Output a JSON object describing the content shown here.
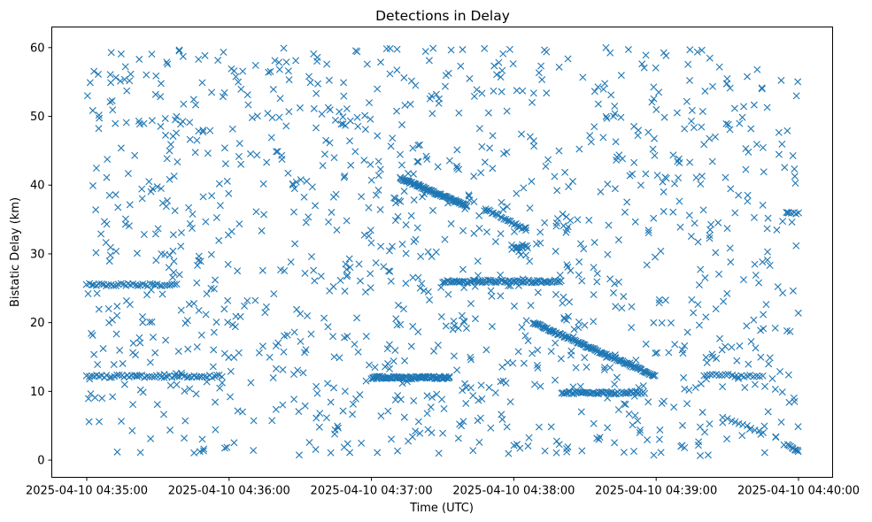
{
  "chart_data": {
    "type": "scatter",
    "title": "Detections in Delay",
    "xlabel": "Time (UTC)",
    "ylabel": "Bistatic Delay (km)",
    "x_start": "2025-04-10 04:35:00",
    "x_end": "2025-04-10 04:40:00",
    "xticks": [
      "2025-04-10 04:35:00",
      "2025-04-10 04:36:00",
      "2025-04-10 04:37:00",
      "2025-04-10 04:38:00",
      "2025-04-10 04:39:00",
      "2025-04-10 04:40:00"
    ],
    "ylim": [
      -2.5,
      63
    ],
    "yticks": [
      0,
      10,
      20,
      30,
      40,
      50,
      60
    ],
    "marker": "x",
    "color": "#1f77b4",
    "grid": false,
    "noise_points": {
      "count": 1200,
      "time_range": [
        "2025-04-10 04:35:00",
        "2025-04-10 04:40:00"
      ],
      "delay_range_km": [
        0.5,
        60
      ]
    },
    "series": [
      {
        "kind": "horizontal",
        "delay_km": 12.2,
        "time_start": "2025-04-10 04:35:00",
        "time_end": "2025-04-10 04:35:57",
        "count": 55
      },
      {
        "kind": "horizontal",
        "delay_km": 25.5,
        "time_start": "2025-04-10 04:35:00",
        "time_end": "2025-04-10 04:35:38",
        "count": 38
      },
      {
        "kind": "horizontal",
        "delay_km": 12.0,
        "time_start": "2025-04-10 04:37:00",
        "time_end": "2025-04-10 04:37:33",
        "count": 90
      },
      {
        "kind": "diagonal",
        "delay_start_km": 41.0,
        "delay_end_km": 37.0,
        "time_start": "2025-04-10 04:37:12",
        "time_end": "2025-04-10 04:37:40",
        "count": 80
      },
      {
        "kind": "diagonal",
        "delay_start_km": 36.5,
        "delay_end_km": 33.5,
        "time_start": "2025-04-10 04:37:48",
        "time_end": "2025-04-10 04:38:05",
        "count": 25
      },
      {
        "kind": "horizontal",
        "delay_km": 26.0,
        "time_start": "2025-04-10 04:37:30",
        "time_end": "2025-04-10 04:38:20",
        "count": 80
      },
      {
        "kind": "diagonal",
        "delay_start_km": 20.0,
        "delay_end_km": 12.3,
        "time_start": "2025-04-10 04:38:08",
        "time_end": "2025-04-10 04:38:59",
        "count": 110
      },
      {
        "kind": "horizontal",
        "delay_km": 9.8,
        "time_start": "2025-04-10 04:38:20",
        "time_end": "2025-04-10 04:38:55",
        "count": 55
      },
      {
        "kind": "horizontal",
        "delay_km": 31.0,
        "time_start": "2025-04-10 04:38:00",
        "time_end": "2025-04-10 04:38:06",
        "count": 10
      },
      {
        "kind": "horizontal",
        "delay_km": 12.3,
        "time_start": "2025-04-10 04:39:20",
        "time_end": "2025-04-10 04:39:45",
        "count": 20
      },
      {
        "kind": "horizontal",
        "delay_km": 36.0,
        "time_start": "2025-04-10 04:39:55",
        "time_end": "2025-04-10 04:40:00",
        "count": 6
      },
      {
        "kind": "diagonal",
        "delay_start_km": 6.0,
        "delay_end_km": 4.0,
        "time_start": "2025-04-10 04:39:30",
        "time_end": "2025-04-10 04:39:45",
        "count": 10
      },
      {
        "kind": "diagonal",
        "delay_start_km": 2.0,
        "delay_end_km": 1.3,
        "time_start": "2025-04-10 04:39:56",
        "time_end": "2025-04-10 04:40:00",
        "count": 8
      }
    ]
  }
}
